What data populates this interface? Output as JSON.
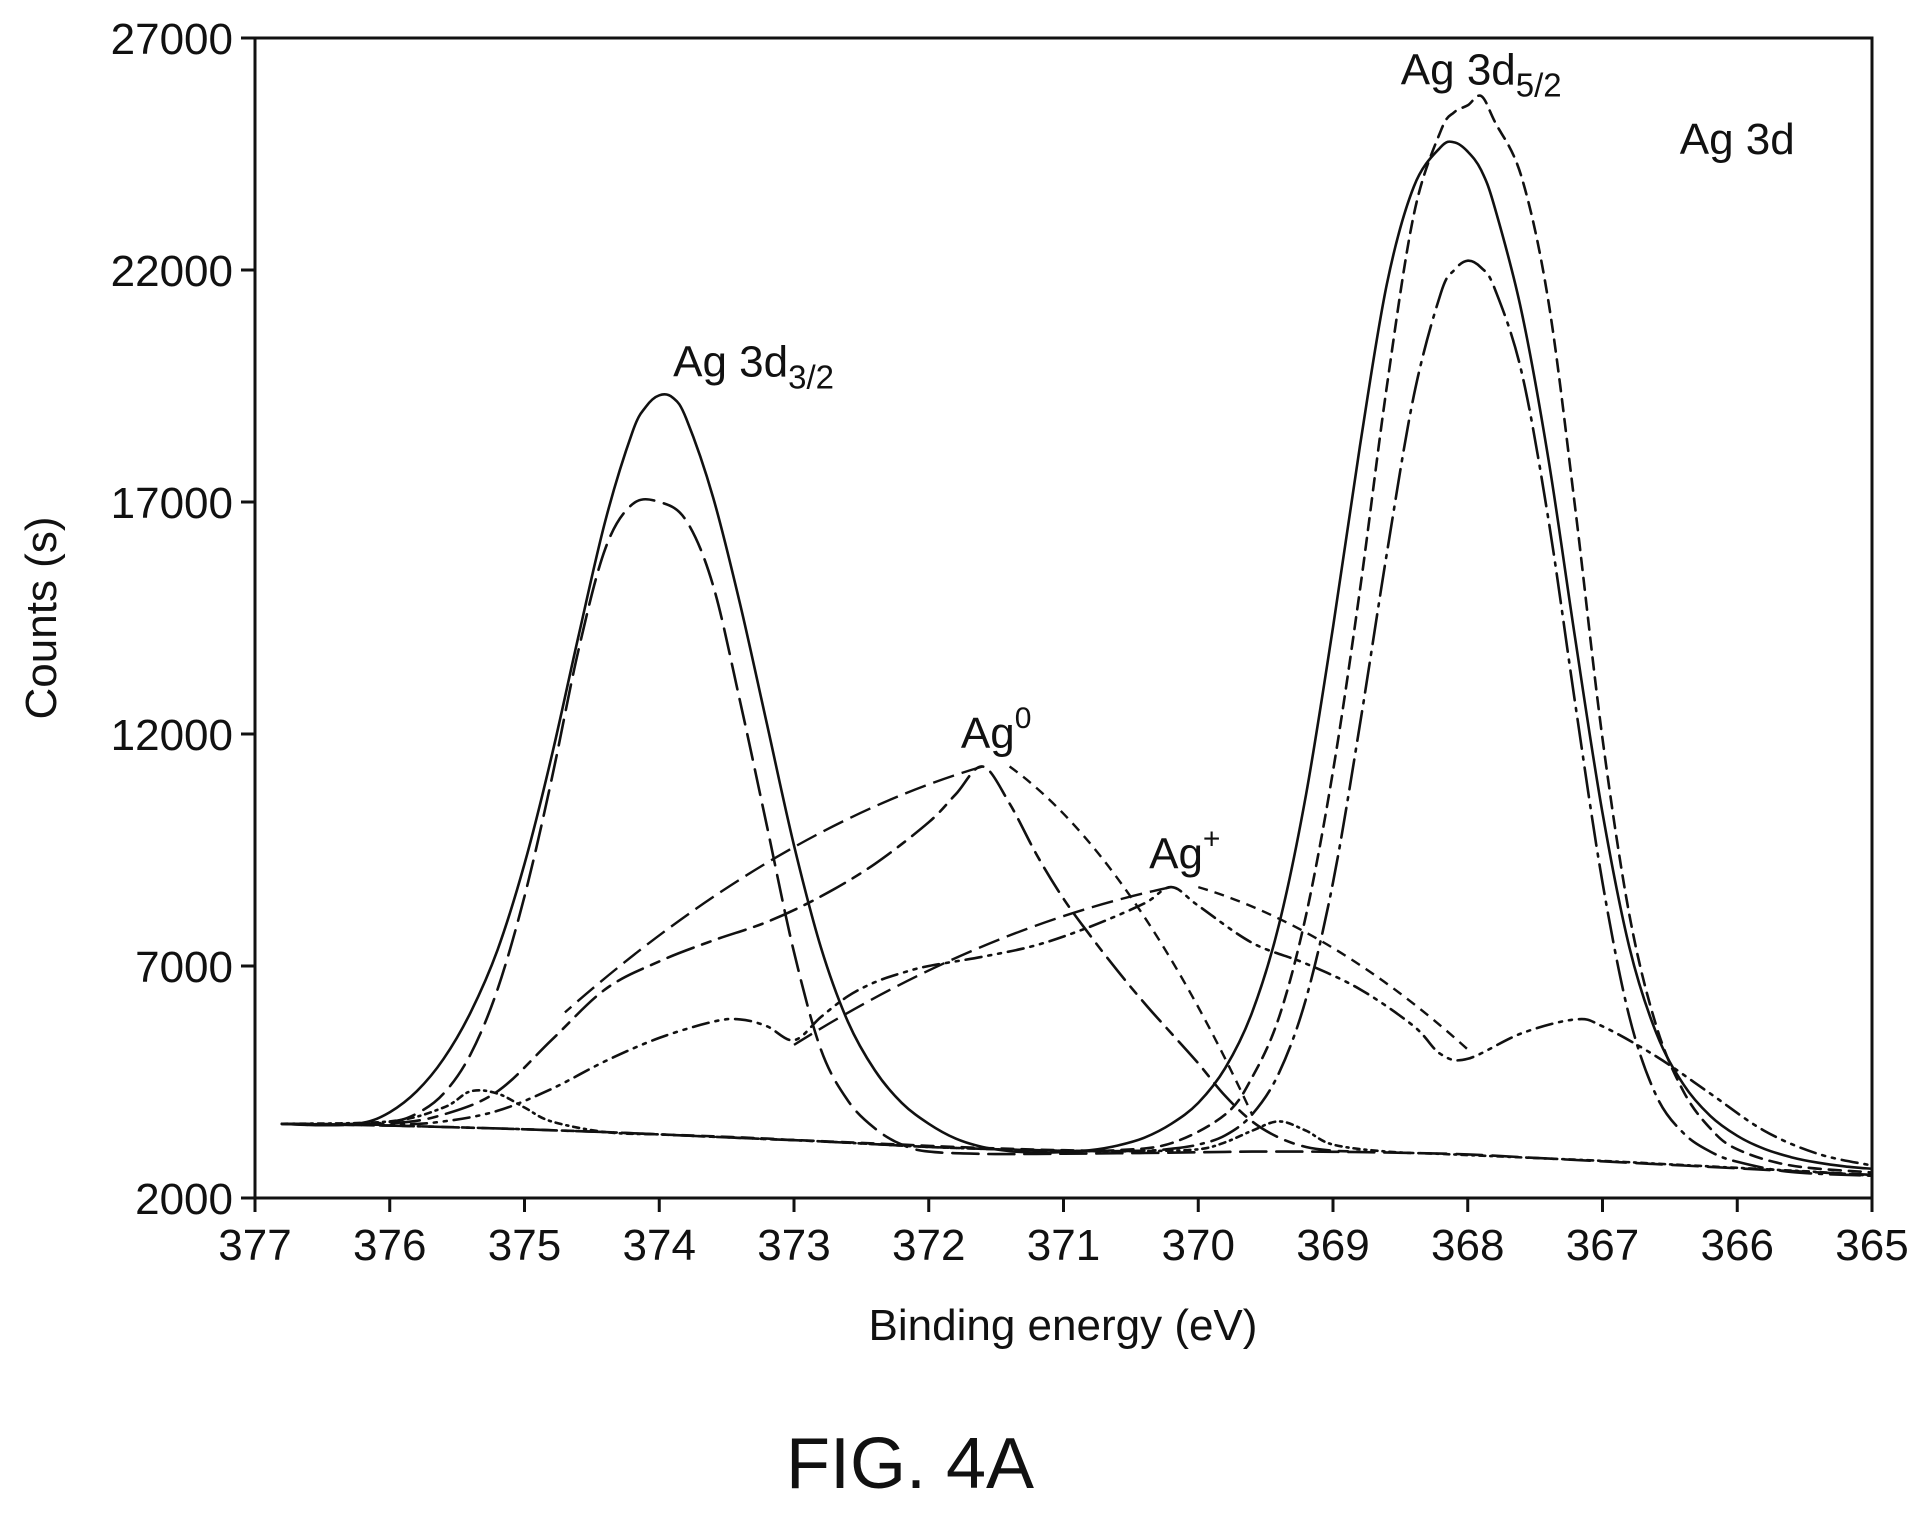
{
  "figure": {
    "caption": "FIG. 4A"
  },
  "chart_data": {
    "type": "line",
    "title": "",
    "xlabel": "Binding energy (eV)",
    "ylabel": "Counts (s)",
    "xlim": [
      377,
      365
    ],
    "ylim": [
      2000,
      27000
    ],
    "x_reversed": true,
    "grid": false,
    "legend": "none",
    "xticks": [
      377,
      376,
      375,
      374,
      373,
      372,
      371,
      370,
      369,
      368,
      367,
      366,
      365
    ],
    "yticks": [
      2000,
      7000,
      12000,
      17000,
      22000,
      27000
    ],
    "annotations": [
      {
        "id": "ag3d32",
        "text": "Ag 3d",
        "subscript": "3/2",
        "x": 373.3,
        "y": 19700
      },
      {
        "id": "ag3d52",
        "text": "Ag 3d",
        "subscript": "5/2",
        "x": 367.9,
        "y": 26000
      },
      {
        "id": "ag3d",
        "text": "Ag 3d",
        "subscript": "",
        "x": 366.0,
        "y": 24500
      },
      {
        "id": "ag0",
        "text": "Ag",
        "superscript": "0",
        "x": 371.5,
        "y": 11700,
        "leaders": [
          [
            371.6,
            11300,
            374.7,
            6000
          ],
          [
            371.4,
            11300,
            369.6,
            3800
          ]
        ]
      },
      {
        "id": "agplus",
        "text": "Ag",
        "superscript": "+",
        "x": 370.1,
        "y": 9100,
        "leaders": [
          [
            370.2,
            8700,
            373.0,
            5300
          ],
          [
            370.0,
            8700,
            368.0,
            5200
          ]
        ]
      }
    ],
    "series": [
      {
        "style": "solid",
        "x": [
          376.8,
          376.5,
          376.2,
          376.0,
          375.8,
          375.6,
          375.4,
          375.2,
          375.0,
          374.8,
          374.6,
          374.4,
          374.2,
          374.1,
          374.0,
          373.9,
          373.8,
          373.6,
          373.4,
          373.2,
          373.0,
          372.8,
          372.6,
          372.4,
          372.2,
          372.0,
          371.8,
          371.6,
          371.4,
          371.2,
          371.0,
          370.8,
          370.6,
          370.4,
          370.2,
          370.0,
          369.8,
          369.6,
          369.4,
          369.2,
          369.0,
          368.8,
          368.6,
          368.4,
          368.2,
          368.1,
          368.0,
          367.9,
          367.8,
          367.6,
          367.4,
          367.2,
          367.0,
          366.8,
          366.6,
          366.4,
          366.2,
          366.0,
          365.8,
          365.6,
          365.4,
          365.2,
          365.0
        ],
        "y": [
          3600,
          3570,
          3620,
          3850,
          4300,
          5000,
          6000,
          7350,
          9200,
          11500,
          14100,
          16600,
          18500,
          19050,
          19300,
          19250,
          18800,
          17100,
          14800,
          12200,
          9600,
          7400,
          5800,
          4750,
          4050,
          3600,
          3280,
          3100,
          3010,
          2980,
          2990,
          3030,
          3130,
          3300,
          3600,
          4050,
          4800,
          6000,
          7900,
          10700,
          14300,
          18200,
          21700,
          23800,
          24650,
          24750,
          24550,
          24150,
          23350,
          21100,
          17900,
          14000,
          10300,
          7400,
          5550,
          4450,
          3770,
          3340,
          3060,
          2880,
          2760,
          2680,
          2630
        ]
      },
      {
        "style": "long-dash",
        "x": [
          376.8,
          376.4,
          376.0,
          375.8,
          375.6,
          375.4,
          375.2,
          375.0,
          374.8,
          374.6,
          374.4,
          374.2,
          374.0,
          373.8,
          373.6,
          373.4,
          373.2,
          373.0,
          372.8,
          372.6,
          372.4,
          372.2,
          372.0,
          371.6,
          371.2,
          370.8,
          370.4,
          370.0,
          369.6,
          369.2,
          368.8,
          368.4,
          368.0,
          367.6,
          367.2,
          366.8,
          366.4,
          366.0,
          365.6,
          365.0
        ],
        "y": [
          3600,
          3570,
          3640,
          3820,
          4250,
          5100,
          6500,
          8500,
          11000,
          13800,
          16000,
          16950,
          17000,
          16600,
          15200,
          12700,
          10000,
          7300,
          5200,
          4100,
          3500,
          3150,
          3000,
          2950,
          2950,
          2960,
          2970,
          2985,
          3000,
          3000,
          2990,
          2970,
          2940,
          2880,
          2820,
          2760,
          2700,
          2640,
          2580,
          2500
        ]
      },
      {
        "style": "long-dash-dot",
        "x": [
          376.8,
          376.4,
          376.0,
          375.6,
          375.2,
          374.8,
          374.4,
          374.0,
          373.6,
          373.2,
          372.8,
          372.4,
          372.0,
          371.6,
          371.2,
          370.8,
          370.4,
          370.2,
          370.0,
          369.8,
          369.6,
          369.4,
          369.2,
          369.0,
          368.8,
          368.6,
          368.4,
          368.2,
          368.1,
          368.0,
          367.9,
          367.8,
          367.6,
          367.4,
          367.2,
          367.0,
          366.8,
          366.6,
          366.4,
          366.2,
          366.0,
          365.6,
          365.0
        ],
        "y": [
          3600,
          3580,
          3560,
          3530,
          3500,
          3460,
          3420,
          3370,
          3320,
          3270,
          3220,
          3160,
          3100,
          3060,
          3030,
          3010,
          3020,
          3060,
          3150,
          3350,
          3800,
          4700,
          6300,
          8800,
          12200,
          15900,
          19300,
          21500,
          22000,
          22200,
          22050,
          21600,
          19800,
          16600,
          12600,
          8800,
          5900,
          4200,
          3400,
          3000,
          2780,
          2560,
          2480
        ]
      },
      {
        "style": "dash",
        "x": [
          376.8,
          376.0,
          375.0,
          374.4,
          374.0,
          373.6,
          373.2,
          373.0,
          372.6,
          372.2,
          371.8,
          371.4,
          371.0,
          370.6,
          370.2,
          369.8,
          369.6,
          369.4,
          369.2,
          369.0,
          368.8,
          368.6,
          368.4,
          368.2,
          368.1,
          368.0,
          367.9,
          367.8,
          367.6,
          367.4,
          367.2,
          367.0,
          366.8,
          366.6,
          366.4,
          366.2,
          366.0,
          365.6,
          365.0
        ],
        "y": [
          3600,
          3560,
          3480,
          3420,
          3370,
          3330,
          3280,
          3250,
          3200,
          3150,
          3100,
          3060,
          3030,
          3030,
          3180,
          3800,
          4600,
          5900,
          8100,
          11200,
          15100,
          19500,
          23200,
          25000,
          25400,
          25550,
          25750,
          25200,
          24000,
          21300,
          16800,
          11900,
          8100,
          5700,
          4300,
          3500,
          3050,
          2700,
          2550
        ]
      },
      {
        "style": "long-dash-short-dash",
        "x": [
          376.8,
          376.0,
          375.6,
          375.2,
          374.8,
          374.4,
          374.0,
          373.6,
          373.2,
          372.8,
          372.4,
          372.0,
          371.8,
          371.6,
          371.4,
          371.2,
          371.0,
          370.8,
          370.6,
          370.4,
          370.2,
          370.0,
          369.8,
          369.6,
          369.4,
          369.2,
          369.0,
          368.8
        ],
        "y": [
          3600,
          3610,
          3800,
          4300,
          5400,
          6500,
          7100,
          7550,
          7950,
          8500,
          9200,
          10100,
          10700,
          11300,
          10500,
          9400,
          8450,
          7650,
          6900,
          6200,
          5550,
          4900,
          4200,
          3650,
          3300,
          3100,
          3020,
          3000
        ]
      },
      {
        "style": "dash-dot-dot",
        "x": [
          376.8,
          376.0,
          375.6,
          375.2,
          374.8,
          374.4,
          374.0,
          373.6,
          373.4,
          373.2,
          373.0,
          372.8,
          372.6,
          372.4,
          372.2,
          372.0,
          371.6,
          371.2,
          370.8,
          370.4,
          370.2,
          370.0,
          369.6,
          369.2,
          368.8,
          368.4,
          368.2,
          368.0,
          367.6,
          367.2,
          367.0,
          366.6,
          366.2,
          365.8,
          365.4,
          365.0
        ],
        "y": [
          3600,
          3580,
          3650,
          3880,
          4350,
          4950,
          5450,
          5800,
          5850,
          5700,
          5400,
          5900,
          6350,
          6650,
          6850,
          7000,
          7200,
          7450,
          7850,
          8350,
          8700,
          8300,
          7500,
          7050,
          6500,
          5700,
          5100,
          5000,
          5550,
          5850,
          5700,
          5050,
          4250,
          3450,
          2950,
          2700
        ]
      },
      {
        "style": "dot-dash-baseline",
        "x": [
          376.8,
          376.0,
          375.6,
          375.4,
          375.2,
          375.0,
          374.8,
          374.4,
          374.0,
          373.6,
          373.2,
          372.8,
          372.4,
          372.0,
          371.6,
          371.2,
          370.8,
          370.4,
          370.0,
          369.8,
          369.6,
          369.4,
          369.2,
          369.0,
          368.6,
          368.2,
          367.8,
          367.4,
          367.0,
          366.6,
          366.2,
          365.8,
          365.4,
          365.0
        ],
        "y": [
          3600,
          3650,
          3950,
          4300,
          4250,
          3950,
          3650,
          3420,
          3370,
          3320,
          3270,
          3220,
          3160,
          3100,
          3060,
          3030,
          3010,
          3010,
          3050,
          3200,
          3450,
          3650,
          3450,
          3150,
          3000,
          2950,
          2900,
          2850,
          2800,
          2740,
          2680,
          2620,
          2560,
          2480
        ]
      }
    ]
  }
}
